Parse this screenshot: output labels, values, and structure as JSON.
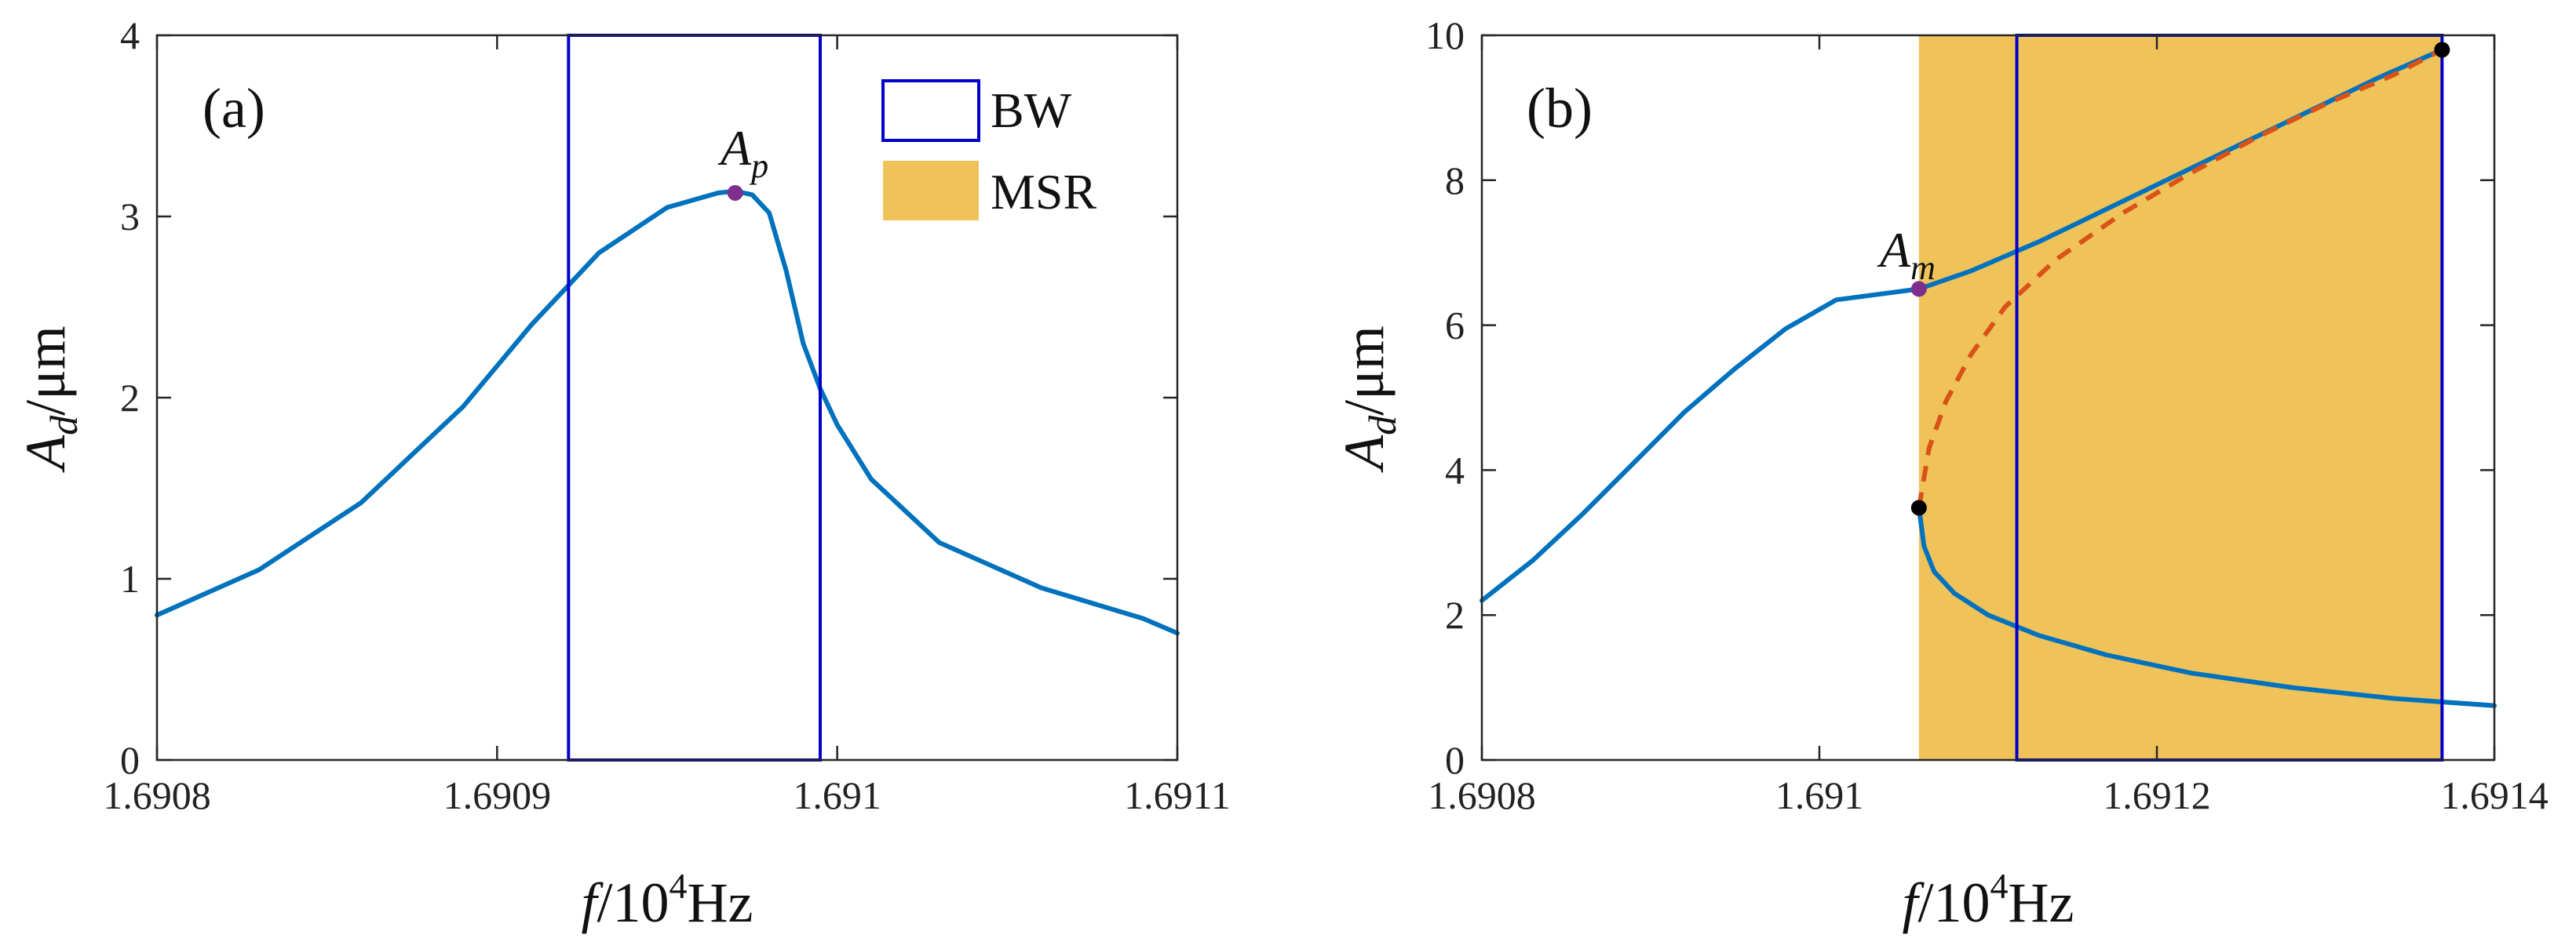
{
  "chart_data": [
    {
      "type": "line",
      "panel_label": "(a)",
      "xlabel_var": "f",
      "xlabel_unit": "/10",
      "xlabel_exp": "4",
      "xlabel_hz": "Hz",
      "ylabel_var": "A",
      "ylabel_sub": "d",
      "ylabel_unit": "/μm",
      "xlim": [
        1.6908,
        1.6911
      ],
      "ylim": [
        0,
        4
      ],
      "xticks": [
        1.6908,
        1.6909,
        1.691,
        1.6911
      ],
      "xtick_labels": [
        "1.6908",
        "1.6909",
        "1.691",
        "1.6911"
      ],
      "yticks": [
        0,
        1,
        2,
        3,
        4
      ],
      "ytick_labels": [
        "0",
        "1",
        "2",
        "3",
        "4"
      ],
      "series": [
        {
          "name": "response",
          "color": "#0072BD",
          "x": [
            1.6908,
            1.69083,
            1.69086,
            1.69089,
            1.69091,
            1.69093,
            1.69095,
            1.690965,
            1.69097,
            1.690975,
            1.69098,
            1.690985,
            1.69099,
            1.690995,
            1.691,
            1.69101,
            1.69103,
            1.69106,
            1.69109,
            1.6911
          ],
          "y": [
            0.8,
            1.05,
            1.42,
            1.95,
            2.4,
            2.8,
            3.05,
            3.13,
            3.14,
            3.12,
            3.02,
            2.7,
            2.3,
            2.05,
            1.85,
            1.55,
            1.2,
            0.95,
            0.78,
            0.7
          ]
        }
      ],
      "bw_box": {
        "x0": 1.690921,
        "x1": 1.690995,
        "y0": 0,
        "y1": 4,
        "color": "#0000CC"
      },
      "markers": [
        {
          "name": "A_p",
          "x": 1.69097,
          "y": 3.13,
          "color": "#7E2F8E",
          "label_var": "A",
          "label_sub": "p"
        }
      ],
      "legend": [
        {
          "label": "BW",
          "style": "box",
          "color": "#0000CC"
        },
        {
          "label": "MSR",
          "style": "fill",
          "color": "#F0C35A"
        }
      ],
      "legend_position": "top-right"
    },
    {
      "type": "line",
      "panel_label": "(b)",
      "xlabel_var": "f",
      "xlabel_unit": "/10",
      "xlabel_exp": "4",
      "xlabel_hz": "Hz",
      "ylabel_var": "A",
      "ylabel_sub": "d",
      "ylabel_unit": "/μm",
      "xlim": [
        1.6908,
        1.6914
      ],
      "ylim": [
        0,
        10
      ],
      "xticks": [
        1.6908,
        1.691,
        1.6912,
        1.6914
      ],
      "xtick_labels": [
        "1.6908",
        "1.691",
        "1.6912",
        "1.6914"
      ],
      "yticks": [
        0,
        2,
        4,
        6,
        8,
        10
      ],
      "ytick_labels": [
        "0",
        "2",
        "4",
        "6",
        "8",
        "10"
      ],
      "msr_region": {
        "x0": 1.691059,
        "x1": 1.691369,
        "color": "#F0C35A"
      },
      "bw_box": {
        "x0": 1.691117,
        "x1": 1.691369,
        "y0": 0,
        "y1": 10,
        "color": "#0000CC"
      },
      "series": [
        {
          "name": "upper-stable-branch",
          "color": "#0072BD",
          "dash": false,
          "x": [
            1.6908,
            1.69083,
            1.69086,
            1.69089,
            1.69092,
            1.69095,
            1.69098,
            1.69101,
            1.691059,
            1.69109,
            1.69113,
            1.69117,
            1.69121,
            1.69125,
            1.69129,
            1.69133,
            1.691369
          ],
          "y": [
            2.2,
            2.75,
            3.4,
            4.1,
            4.8,
            5.4,
            5.95,
            6.35,
            6.5,
            6.75,
            7.15,
            7.6,
            8.05,
            8.5,
            8.95,
            9.4,
            9.8
          ]
        },
        {
          "name": "unstable-branch",
          "color": "#D95319",
          "dash": true,
          "x": [
            1.691059,
            1.691065,
            1.691075,
            1.69109,
            1.69111,
            1.69114,
            1.69118,
            1.69122,
            1.69126,
            1.6913,
            1.69134,
            1.691369
          ],
          "y": [
            3.48,
            4.3,
            4.95,
            5.6,
            6.25,
            6.9,
            7.55,
            8.1,
            8.6,
            9.05,
            9.45,
            9.8
          ]
        },
        {
          "name": "lower-stable-branch",
          "color": "#0072BD",
          "dash": false,
          "x": [
            1.691059,
            1.691062,
            1.691068,
            1.69108,
            1.6911,
            1.69113,
            1.69117,
            1.69122,
            1.69128,
            1.69134,
            1.6914
          ],
          "y": [
            3.48,
            2.95,
            2.6,
            2.3,
            2.0,
            1.72,
            1.45,
            1.2,
            1.0,
            0.85,
            0.75
          ]
        }
      ],
      "markers": [
        {
          "name": "A_m",
          "x": 1.691059,
          "y": 6.5,
          "color": "#7E2F8E",
          "label_var": "A",
          "label_sub": "m"
        },
        {
          "name": "lower-saddle-node",
          "x": 1.691059,
          "y": 3.48,
          "color": "#000000"
        },
        {
          "name": "upper-saddle-node",
          "x": 1.691369,
          "y": 9.8,
          "color": "#000000"
        }
      ]
    }
  ]
}
